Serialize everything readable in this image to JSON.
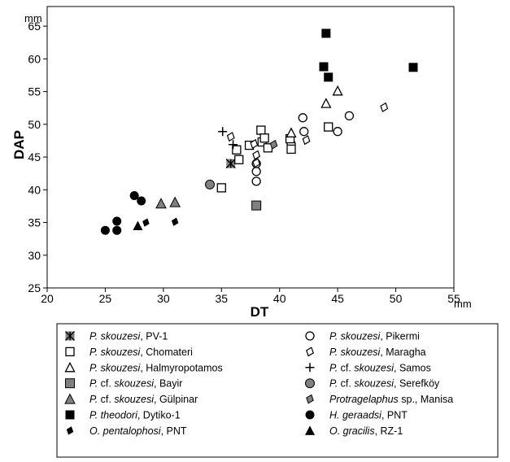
{
  "chart_data": {
    "type": "scatter",
    "xlabel": "DT",
    "ylabel": "DAP",
    "x_unit": "mm",
    "y_unit": "mm",
    "xlim": [
      20,
      55
    ],
    "ylim": [
      25,
      68
    ],
    "x_ticks": [
      "20",
      "25",
      "30",
      "35",
      "40",
      "45",
      "50",
      "55"
    ],
    "y_ticks": [
      "25",
      "30",
      "35",
      "40",
      "45",
      "50",
      "55",
      "60",
      "65"
    ],
    "grid": false,
    "legend_position": "bottom",
    "series": [
      {
        "name_italic": "P. skouzesi",
        "name_rest": ", PV-1",
        "marker": "asterisk-square",
        "color": "#808080",
        "points": [
          [
            35.8,
            44
          ]
        ]
      },
      {
        "name_italic": "P. skouzesi",
        "name_rest": ", Pikermi",
        "marker": "circle-open",
        "color": "#000000",
        "points": [
          [
            38,
            41.3
          ],
          [
            38,
            42.8
          ],
          [
            38,
            44
          ],
          [
            41,
            47
          ],
          [
            42,
            51
          ],
          [
            42.1,
            48.9
          ],
          [
            45,
            48.9
          ],
          [
            46,
            51.3
          ]
        ]
      },
      {
        "name_italic": "P. skouzesi",
        "name_rest": ", Chomateri",
        "marker": "square-open",
        "color": "#000000",
        "points": [
          [
            35,
            40.3
          ],
          [
            36.3,
            46.1
          ],
          [
            36.5,
            44.6
          ],
          [
            37.4,
            46.8
          ],
          [
            38.4,
            49.1
          ],
          [
            38.5,
            47.3
          ],
          [
            38.7,
            47.9
          ],
          [
            39,
            46.4
          ],
          [
            40.9,
            47.8
          ],
          [
            41,
            46.2
          ],
          [
            44.2,
            49.6
          ]
        ]
      },
      {
        "name_italic": "P. skouzesi",
        "name_rest": ", Maragha",
        "marker": "diamond-open",
        "color": "#000000",
        "points": [
          [
            35.8,
            48.1
          ],
          [
            37.8,
            47
          ],
          [
            38,
            44.1
          ],
          [
            38,
            45.3
          ],
          [
            42.3,
            47.6
          ],
          [
            49,
            52.6
          ]
        ]
      },
      {
        "name_italic": "P. skouzesi",
        "name_rest": ", Halmyropotamos",
        "marker": "triangle-open",
        "color": "#000000",
        "points": [
          [
            41,
            48.7
          ],
          [
            44,
            53.2
          ],
          [
            45,
            55.1
          ]
        ]
      },
      {
        "name_italic": "P.",
        "name_rest": " cf. ",
        "name_italic2": "skouzesi",
        "name_rest2": ", Samos",
        "marker": "plus",
        "color": "#000000",
        "points": [
          [
            35.1,
            48.9
          ],
          [
            36,
            46.9
          ]
        ]
      },
      {
        "name_italic": "P.",
        "name_rest": " cf. ",
        "name_italic2": "skouzesi",
        "name_rest2": ", Bayir",
        "marker": "square-filled",
        "color": "#808080",
        "points": [
          [
            38,
            37.6
          ]
        ]
      },
      {
        "name_italic": "P.",
        "name_rest": " cf. ",
        "name_italic2": "skouzesi",
        "name_rest2": ", Serefköy",
        "marker": "circle-filled",
        "color": "#808080",
        "points": [
          [
            34,
            40.8
          ]
        ]
      },
      {
        "name_italic": "P.",
        "name_rest": " cf. ",
        "name_italic2": "skouzesi",
        "name_rest2": ", Gülpinar",
        "marker": "triangle-filled",
        "color": "#808080",
        "points": [
          [
            29.8,
            37.9
          ],
          [
            31,
            38.1
          ]
        ]
      },
      {
        "name_italic": "Protragelaphus",
        "name_rest": " sp., Manisa",
        "marker": "diamond-filled",
        "color": "#808080",
        "points": [
          [
            39.5,
            46.9
          ]
        ]
      },
      {
        "name_italic": "P. theodori",
        "name_rest": ", Dytiko-1",
        "marker": "square-filled",
        "color": "#000000",
        "points": [
          [
            43.8,
            58.8
          ],
          [
            44,
            63.9
          ],
          [
            44.2,
            57.2
          ],
          [
            51.5,
            58.7
          ]
        ]
      },
      {
        "name_italic": "H. geraadsi",
        "name_rest": ", PNT",
        "marker": "circle-filled",
        "color": "#000000",
        "points": [
          [
            25,
            33.8
          ],
          [
            26,
            33.8
          ],
          [
            26,
            35.2
          ],
          [
            27.5,
            39.1
          ],
          [
            28.1,
            38.3
          ]
        ]
      },
      {
        "name_italic": "O. pentalophosi",
        "name_rest": ", PNT",
        "marker": "diamond-filled",
        "color": "#000000",
        "points": [
          [
            28.5,
            35
          ],
          [
            31,
            35.1
          ]
        ]
      },
      {
        "name_italic": "O. gracilis",
        "name_rest": ", RZ-1",
        "marker": "triangle-filled",
        "color": "#000000",
        "points": [
          [
            27.8,
            34.5
          ]
        ]
      }
    ]
  }
}
